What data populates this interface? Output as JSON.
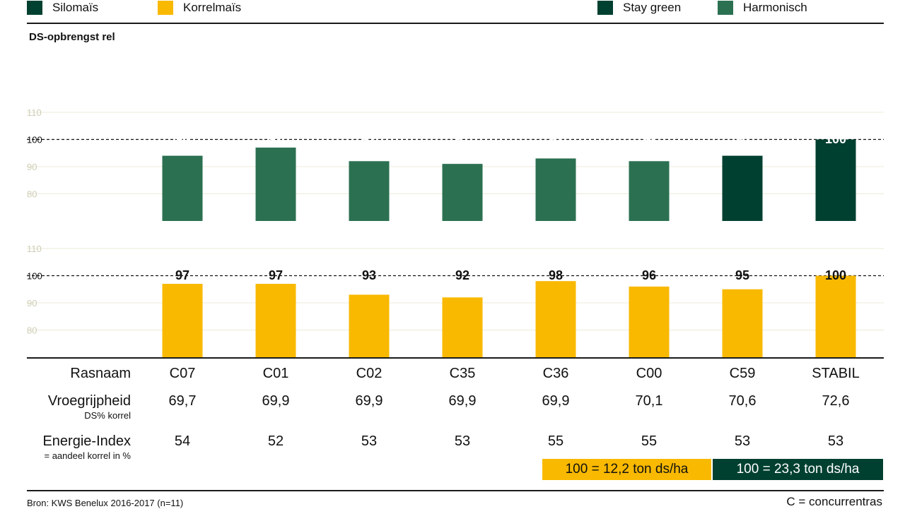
{
  "legend": {
    "silomais": {
      "label": "Silomaïs",
      "color": "#004030"
    },
    "korrelmais": {
      "label": "Korrelmaïs",
      "color": "#f9b900"
    },
    "stay_green": {
      "label": "Stay green",
      "color": "#004030"
    },
    "harmonisch": {
      "label": "Harmonisch",
      "color": "#2b7051"
    }
  },
  "chart_data": {
    "type": "bar",
    "ylabel": "DS-opbrengst rel",
    "categories": [
      "C07",
      "C01",
      "C02",
      "C35",
      "C36",
      "C00",
      "C59",
      "STABIL"
    ],
    "panels": [
      {
        "name": "Silomaïs",
        "ylim": [
          70,
          110
        ],
        "yticks": [
          80,
          90,
          100,
          110
        ],
        "reference_line": 100,
        "values": [
          94,
          97,
          92,
          91,
          93,
          92,
          94,
          100
        ],
        "bar_type": [
          "Harmonisch",
          "Harmonisch",
          "Harmonisch",
          "Harmonisch",
          "Harmonisch",
          "Harmonisch",
          "Stay green",
          "Stay green"
        ]
      },
      {
        "name": "Korrelmaïs",
        "ylim": [
          70,
          110
        ],
        "yticks": [
          80,
          90,
          100,
          110
        ],
        "reference_line": 100,
        "values": [
          97,
          97,
          93,
          92,
          98,
          96,
          95,
          100
        ]
      }
    ],
    "grid": true
  },
  "table": {
    "rows": [
      {
        "label": "Rasnaam",
        "sublabel": "",
        "values": [
          "C07",
          "C01",
          "C02",
          "C35",
          "C36",
          "C00",
          "C59",
          "STABIL"
        ]
      },
      {
        "label": "Vroegrijpheid",
        "sublabel": "DS% korrel",
        "values": [
          "69,7",
          "69,9",
          "69,9",
          "69,9",
          "69,9",
          "70,1",
          "70,6",
          "72,6"
        ]
      },
      {
        "label": "Energie-Index",
        "sublabel": "= aandeel korrel in %",
        "values": [
          "54",
          "52",
          "53",
          "53",
          "55",
          "55",
          "53",
          "53"
        ]
      }
    ]
  },
  "reference_boxes": [
    {
      "text": "100 = 12,2 ton ds/ha",
      "color": "#f9b900",
      "text_color": "#111111"
    },
    {
      "text": "100 = 23,3 ton ds/ha",
      "color": "#004030",
      "text_color": "#ffffff"
    }
  ],
  "source": "Bron: KWS Benelux 2016-2017 (n=11)",
  "note": "C = concurrentras"
}
